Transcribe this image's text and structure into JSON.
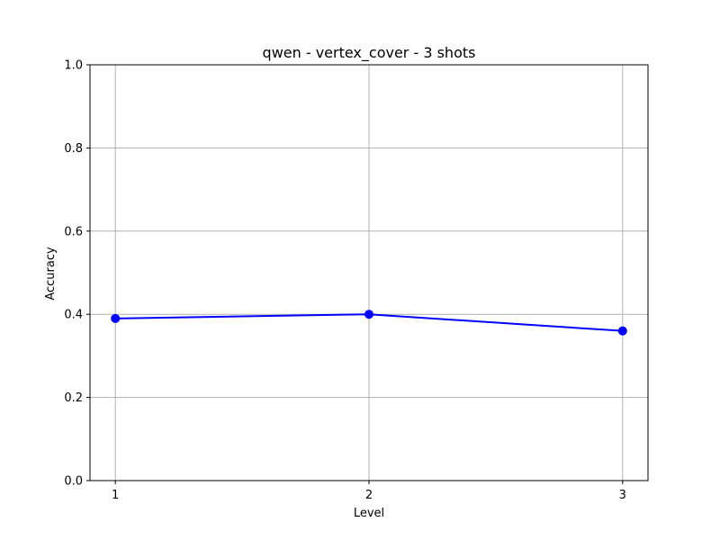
{
  "chart_data": {
    "type": "line",
    "title": "qwen - vertex_cover - 3 shots",
    "xlabel": "Level",
    "ylabel": "Accuracy",
    "x": [
      1,
      2,
      3
    ],
    "x_tick_labels": [
      "1",
      "2",
      "3"
    ],
    "xlim": [
      0.9,
      3.1
    ],
    "ylim": [
      0.0,
      1.0
    ],
    "y_ticks": [
      0.0,
      0.2,
      0.4,
      0.6,
      0.8,
      1.0
    ],
    "y_tick_labels": [
      "0.0",
      "0.2",
      "0.4",
      "0.6",
      "0.8",
      "1.0"
    ],
    "grid": true,
    "series": [
      {
        "values": [
          0.39,
          0.4,
          0.36
        ],
        "color": "#0000ff",
        "marker": "circle"
      }
    ]
  }
}
